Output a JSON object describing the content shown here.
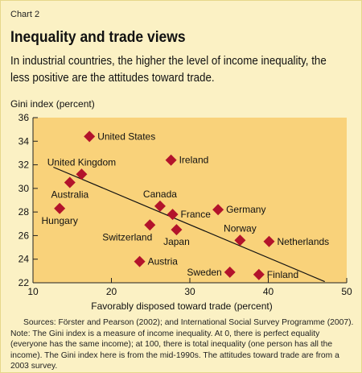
{
  "header": {
    "chart_number": "Chart 2",
    "title": "Inequality and trade views",
    "subtitle": "In industrial countries, the higher the level of income inequality, the less positive are the attitudes toward trade."
  },
  "footer": {
    "sources": "Sources: Förster and Pearson (2002); and International Social Survey Programme (2007).",
    "note": "Note: The Gini index is a measure of income inequality. At 0, there is perfect equality (everyone has the same income); at 100, there is total inequality (one person has all the income). The Gini index here is from the mid-1990s. The attitudes toward trade are from a 2003 survey."
  },
  "colors": {
    "background": "#fbf1c4",
    "plot_background": "#f9d27a",
    "marker": "#b3132b",
    "axis": "#222222",
    "trend_line": "#111111"
  },
  "chart_data": {
    "type": "scatter",
    "xlabel": "Favorably disposed toward trade (percent)",
    "ylabel": "Gini index (percent)",
    "xlim": [
      10,
      50
    ],
    "ylim": [
      22,
      36
    ],
    "x_ticks": [
      "10",
      "20",
      "30",
      "40",
      "50"
    ],
    "y_ticks": [
      "22",
      "24",
      "26",
      "28",
      "30",
      "32",
      "34",
      "36"
    ],
    "marker": "diamond",
    "grid": false,
    "points": [
      {
        "label": "United States",
        "x": 17.2,
        "y": 34.4,
        "label_pos": "right"
      },
      {
        "label": "Ireland",
        "x": 27.6,
        "y": 32.4,
        "label_pos": "right"
      },
      {
        "label": "United Kingdom",
        "x": 16.2,
        "y": 31.2,
        "label_pos": "above"
      },
      {
        "label": "Australia",
        "x": 14.7,
        "y": 30.5,
        "label_pos": "below"
      },
      {
        "label": "Hungary",
        "x": 13.4,
        "y": 28.3,
        "label_pos": "below"
      },
      {
        "label": "Canada",
        "x": 26.2,
        "y": 28.5,
        "label_pos": "above"
      },
      {
        "label": "France",
        "x": 27.8,
        "y": 27.8,
        "label_pos": "right"
      },
      {
        "label": "Germany",
        "x": 33.6,
        "y": 28.2,
        "label_pos": "right"
      },
      {
        "label": "Switzerland",
        "x": 24.9,
        "y": 26.9,
        "label_pos": "below-left"
      },
      {
        "label": "Japan",
        "x": 28.3,
        "y": 26.5,
        "label_pos": "below"
      },
      {
        "label": "Norway",
        "x": 36.4,
        "y": 25.6,
        "label_pos": "above"
      },
      {
        "label": "Netherlands",
        "x": 40.1,
        "y": 25.5,
        "label_pos": "right"
      },
      {
        "label": "Austria",
        "x": 23.6,
        "y": 23.8,
        "label_pos": "right"
      },
      {
        "label": "Sweden",
        "x": 35.1,
        "y": 22.9,
        "label_pos": "left"
      },
      {
        "label": "Finland",
        "x": 38.8,
        "y": 22.7,
        "label_pos": "right"
      }
    ],
    "trend_line": {
      "x": [
        12.6,
        47.2
      ],
      "y": [
        31.8,
        22.1
      ]
    }
  }
}
